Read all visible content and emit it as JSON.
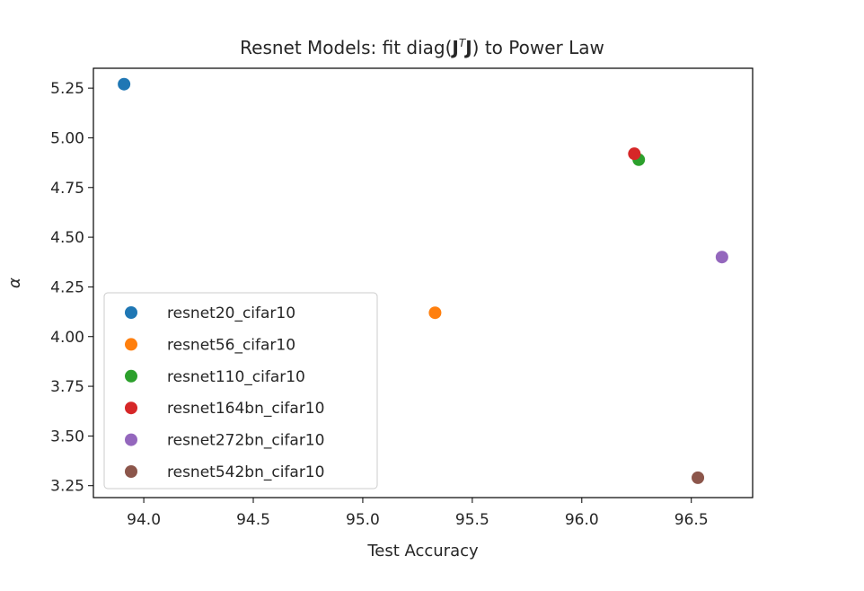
{
  "chart_data": {
    "type": "scatter",
    "title_parts": {
      "prefix": "Resnet Models: fit diag(",
      "j1": "J",
      "sup": "T",
      "j2": "J",
      "suffix": ") to Power Law"
    },
    "xlabel": "Test Accuracy",
    "ylabel": "α",
    "xlim": [
      93.77,
      96.78
    ],
    "ylim": [
      3.19,
      5.35
    ],
    "xticks": [
      94.0,
      94.5,
      95.0,
      95.5,
      96.0,
      96.5
    ],
    "xtick_labels": [
      "94.0",
      "94.5",
      "95.0",
      "95.5",
      "96.0",
      "96.5"
    ],
    "yticks": [
      3.25,
      3.5,
      3.75,
      4.0,
      4.25,
      4.5,
      4.75,
      5.0,
      5.25
    ],
    "ytick_labels": [
      "3.25",
      "3.50",
      "3.75",
      "4.00",
      "4.25",
      "4.50",
      "4.75",
      "5.00",
      "5.25"
    ],
    "grid": false,
    "legend_position": "lower-left",
    "series": [
      {
        "name": "resnet20_cifar10",
        "color": "#1f77b4",
        "x": 93.91,
        "y": 5.27
      },
      {
        "name": "resnet56_cifar10",
        "color": "#ff7f0e",
        "x": 95.33,
        "y": 4.12
      },
      {
        "name": "resnet110_cifar10",
        "color": "#2ca02c",
        "x": 96.26,
        "y": 4.89
      },
      {
        "name": "resnet164bn_cifar10",
        "color": "#d62728",
        "x": 96.24,
        "y": 4.92
      },
      {
        "name": "resnet272bn_cifar10",
        "color": "#9467bd",
        "x": 96.64,
        "y": 4.4
      },
      {
        "name": "resnet542bn_cifar10",
        "color": "#8c564b",
        "x": 96.53,
        "y": 3.29
      }
    ]
  }
}
